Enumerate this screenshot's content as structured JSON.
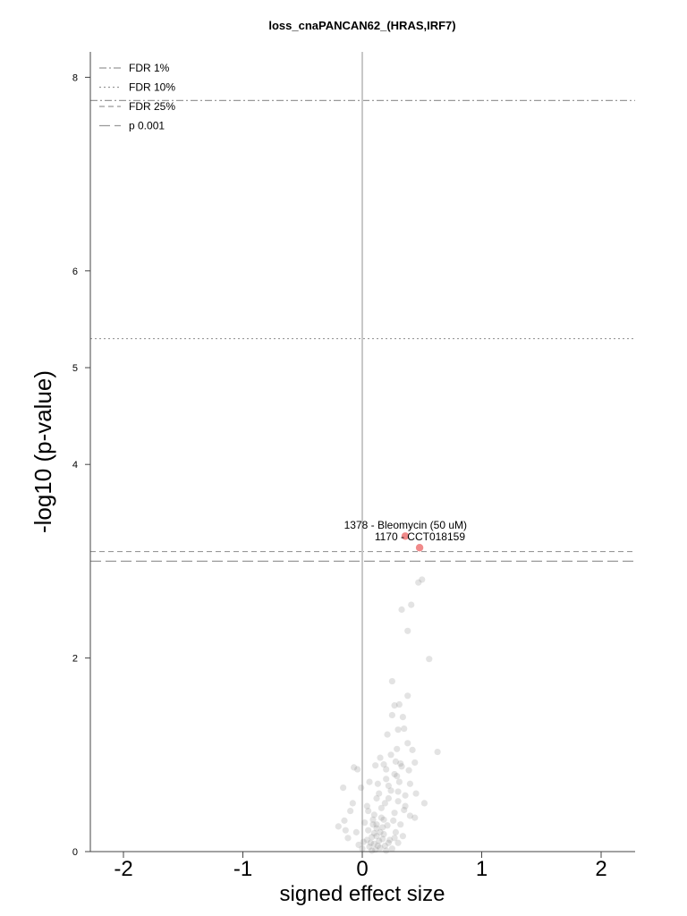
{
  "chart_data": {
    "type": "scatter",
    "title": "loss_cnaPANCAN62_(HRAS,IRF7)",
    "xlabel": "signed effect size",
    "ylabel": "-log10 (p-value)",
    "xlim": [
      -2.3,
      2.3
    ],
    "ylim": [
      0,
      8.3
    ],
    "x_ticks": [
      "-2",
      "-1",
      "0",
      "1",
      "2"
    ],
    "y_ticks": [
      "0",
      "2",
      "4",
      "5",
      "6",
      "8"
    ],
    "grid": false,
    "vertical_reference_line": 0,
    "threshold_lines": [
      {
        "name": "FDR 1%",
        "y": 7.76,
        "style": "dashdot"
      },
      {
        "name": "FDR 10%",
        "y": 5.3,
        "style": "dotted"
      },
      {
        "name": "FDR 25%",
        "y": 3.1,
        "style": "dashed"
      },
      {
        "name": "p 0.001",
        "y": 3.0,
        "style": "longdash"
      }
    ],
    "legend": {
      "placement": "top-left",
      "entries": [
        "FDR 1%",
        "FDR 10%",
        "FDR 25%",
        "p 0.001"
      ]
    },
    "highlighted_points": [
      {
        "label": "1378 - Bleomycin (50 uM)",
        "x": 0.36,
        "y": 3.26,
        "color": "#f08a8a"
      },
      {
        "label": "1170 - CCT018159",
        "x": 0.48,
        "y": 3.14,
        "color": "#f08a8a"
      }
    ],
    "background_points": {
      "color": "#808080",
      "points": [
        [
          0.5,
          2.81
        ],
        [
          0.47,
          2.78
        ],
        [
          0.41,
          2.55
        ],
        [
          0.33,
          2.5
        ],
        [
          0.38,
          2.28
        ],
        [
          0.56,
          1.99
        ],
        [
          0.25,
          1.76
        ],
        [
          0.38,
          1.61
        ],
        [
          0.27,
          1.51
        ],
        [
          0.31,
          1.52
        ],
        [
          0.34,
          1.39
        ],
        [
          0.25,
          1.41
        ],
        [
          0.35,
          1.27
        ],
        [
          0.3,
          1.26
        ],
        [
          0.21,
          1.21
        ],
        [
          0.63,
          1.03
        ],
        [
          0.38,
          1.12
        ],
        [
          0.42,
          1.05
        ],
        [
          0.29,
          1.06
        ],
        [
          0.24,
          1.0
        ],
        [
          0.15,
          0.97
        ],
        [
          0.32,
          0.91
        ],
        [
          0.18,
          0.9
        ],
        [
          0.11,
          0.89
        ],
        [
          -0.07,
          0.87
        ],
        [
          -0.04,
          0.85
        ],
        [
          0.39,
          0.84
        ],
        [
          0.27,
          0.8
        ],
        [
          0.2,
          0.75
        ],
        [
          0.06,
          0.72
        ],
        [
          -0.01,
          0.66
        ],
        [
          -0.16,
          0.66
        ],
        [
          0.45,
          0.6
        ],
        [
          0.3,
          0.62
        ],
        [
          0.22,
          0.55
        ],
        [
          0.12,
          0.55
        ],
        [
          0.52,
          0.5
        ],
        [
          0.36,
          0.47
        ],
        [
          0.04,
          0.47
        ],
        [
          -0.1,
          0.42
        ],
        [
          0.27,
          0.4
        ],
        [
          0.4,
          0.37
        ],
        [
          0.16,
          0.35
        ],
        [
          0.44,
          0.35
        ],
        [
          0.09,
          0.33
        ],
        [
          -0.15,
          0.32
        ],
        [
          0.02,
          0.3
        ],
        [
          0.32,
          0.28
        ],
        [
          0.21,
          0.27
        ],
        [
          -0.2,
          0.26
        ],
        [
          0.12,
          0.24
        ],
        [
          0.05,
          0.22
        ],
        [
          0.28,
          0.2
        ],
        [
          -0.05,
          0.2
        ],
        [
          0.18,
          0.18
        ],
        [
          0.34,
          0.16
        ],
        [
          0.08,
          0.15
        ],
        [
          -0.12,
          0.14
        ],
        [
          0.23,
          0.12
        ],
        [
          0.14,
          0.11
        ],
        [
          0.01,
          0.1
        ],
        [
          0.3,
          0.09
        ],
        [
          0.1,
          0.08
        ],
        [
          -0.03,
          0.07
        ],
        [
          0.19,
          0.06
        ],
        [
          0.06,
          0.05
        ],
        [
          0.15,
          0.04
        ],
        [
          0.25,
          0.03
        ],
        [
          0.0,
          0.03
        ],
        [
          0.11,
          0.02
        ],
        [
          0.2,
          0.01
        ],
        [
          0.08,
          0.01
        ],
        [
          0.16,
          0.45
        ],
        [
          0.24,
          0.63
        ],
        [
          0.13,
          0.7
        ],
        [
          0.31,
          0.72
        ],
        [
          0.19,
          0.5
        ],
        [
          0.1,
          0.38
        ],
        [
          0.26,
          0.32
        ],
        [
          0.05,
          0.42
        ],
        [
          0.35,
          0.43
        ],
        [
          0.2,
          0.85
        ],
        [
          0.28,
          0.93
        ],
        [
          0.33,
          0.88
        ],
        [
          0.22,
          0.68
        ],
        [
          0.14,
          0.6
        ],
        [
          0.17,
          0.25
        ],
        [
          0.12,
          0.16
        ],
        [
          0.04,
          0.12
        ],
        [
          0.09,
          0.28
        ],
        [
          0.27,
          0.14
        ],
        [
          0.22,
          0.09
        ],
        [
          0.13,
          0.06
        ],
        [
          0.07,
          0.09
        ],
        [
          0.18,
          0.33
        ],
        [
          0.3,
          0.52
        ],
        [
          0.36,
          0.58
        ],
        [
          0.4,
          0.7
        ],
        [
          0.44,
          0.92
        ],
        [
          0.29,
          0.78
        ],
        [
          -0.08,
          0.5
        ],
        [
          -0.14,
          0.22
        ],
        [
          0.12,
          0.28
        ],
        [
          0.15,
          0.2
        ],
        [
          0.17,
          0.13
        ],
        [
          0.1,
          0.19
        ]
      ]
    }
  }
}
